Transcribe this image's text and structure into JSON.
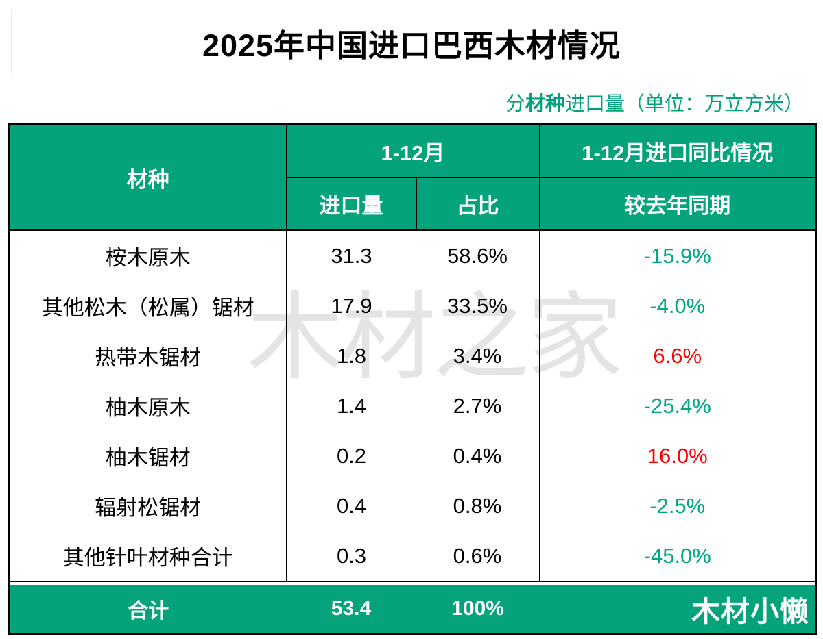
{
  "title": "2025年中国进口巴西木材情况",
  "subtitle": {
    "prefix": "分",
    "bold": "材种",
    "suffix": "进口量（单位：万立方米）"
  },
  "watermark": "木材之家",
  "colors": {
    "header_green": "#04a37b",
    "positive_red": "#ff0000",
    "negative_green": "#00a884",
    "watermark_gray": "#e4e4e4"
  },
  "table": {
    "header": {
      "col_species": "材种",
      "col_period": "1-12月",
      "col_yoy_group": "1-12月进口同比情况",
      "col_import": "进口量",
      "col_share": "占比",
      "col_yoy": "较去年同期"
    },
    "rows": [
      {
        "species": "桉木原木",
        "import": "31.3",
        "share": "58.6%",
        "yoy": "-15.9%",
        "trend": "down"
      },
      {
        "species": "其他松木（松属）锯材",
        "import": "17.9",
        "share": "33.5%",
        "yoy": "-4.0%",
        "trend": "down"
      },
      {
        "species": "热带木锯材",
        "import": "1.8",
        "share": "3.4%",
        "yoy": "6.6%",
        "trend": "up"
      },
      {
        "species": "柚木原木",
        "import": "1.4",
        "share": "2.7%",
        "yoy": "-25.4%",
        "trend": "down"
      },
      {
        "species": "柚木锯材",
        "import": "0.2",
        "share": "0.4%",
        "yoy": "16.0%",
        "trend": "up"
      },
      {
        "species": "辐射松锯材",
        "import": "0.4",
        "share": "0.8%",
        "yoy": "-2.5%",
        "trend": "down"
      },
      {
        "species": "其他针叶材种合计",
        "import": "0.3",
        "share": "0.6%",
        "yoy": "-45.0%",
        "trend": "down"
      }
    ],
    "footer": {
      "label": "合计",
      "import": "53.4",
      "share": "100%",
      "brand": "木材小懒"
    }
  },
  "chart_data": {
    "type": "table",
    "title": "2025年中国进口巴西木材情况",
    "subtitle": "分材种进口量（单位：万立方米）",
    "columns": [
      "材种",
      "1-12月 进口量",
      "1-12月 占比",
      "1-12月进口同比情况 较去年同期"
    ],
    "rows": [
      [
        "桉木原木",
        31.3,
        "58.6%",
        "-15.9%"
      ],
      [
        "其他松木（松属）锯材",
        17.9,
        "33.5%",
        "-4.0%"
      ],
      [
        "热带木锯材",
        1.8,
        "3.4%",
        "6.6%"
      ],
      [
        "柚木原木",
        1.4,
        "2.7%",
        "-25.4%"
      ],
      [
        "柚木锯材",
        0.2,
        "0.4%",
        "16.0%"
      ],
      [
        "辐射松锯材",
        0.4,
        "0.8%",
        "-2.5%"
      ],
      [
        "其他针叶材种合计",
        0.3,
        "0.6%",
        "-45.0%"
      ]
    ],
    "totals": [
      "合计",
      53.4,
      "100%",
      ""
    ]
  }
}
